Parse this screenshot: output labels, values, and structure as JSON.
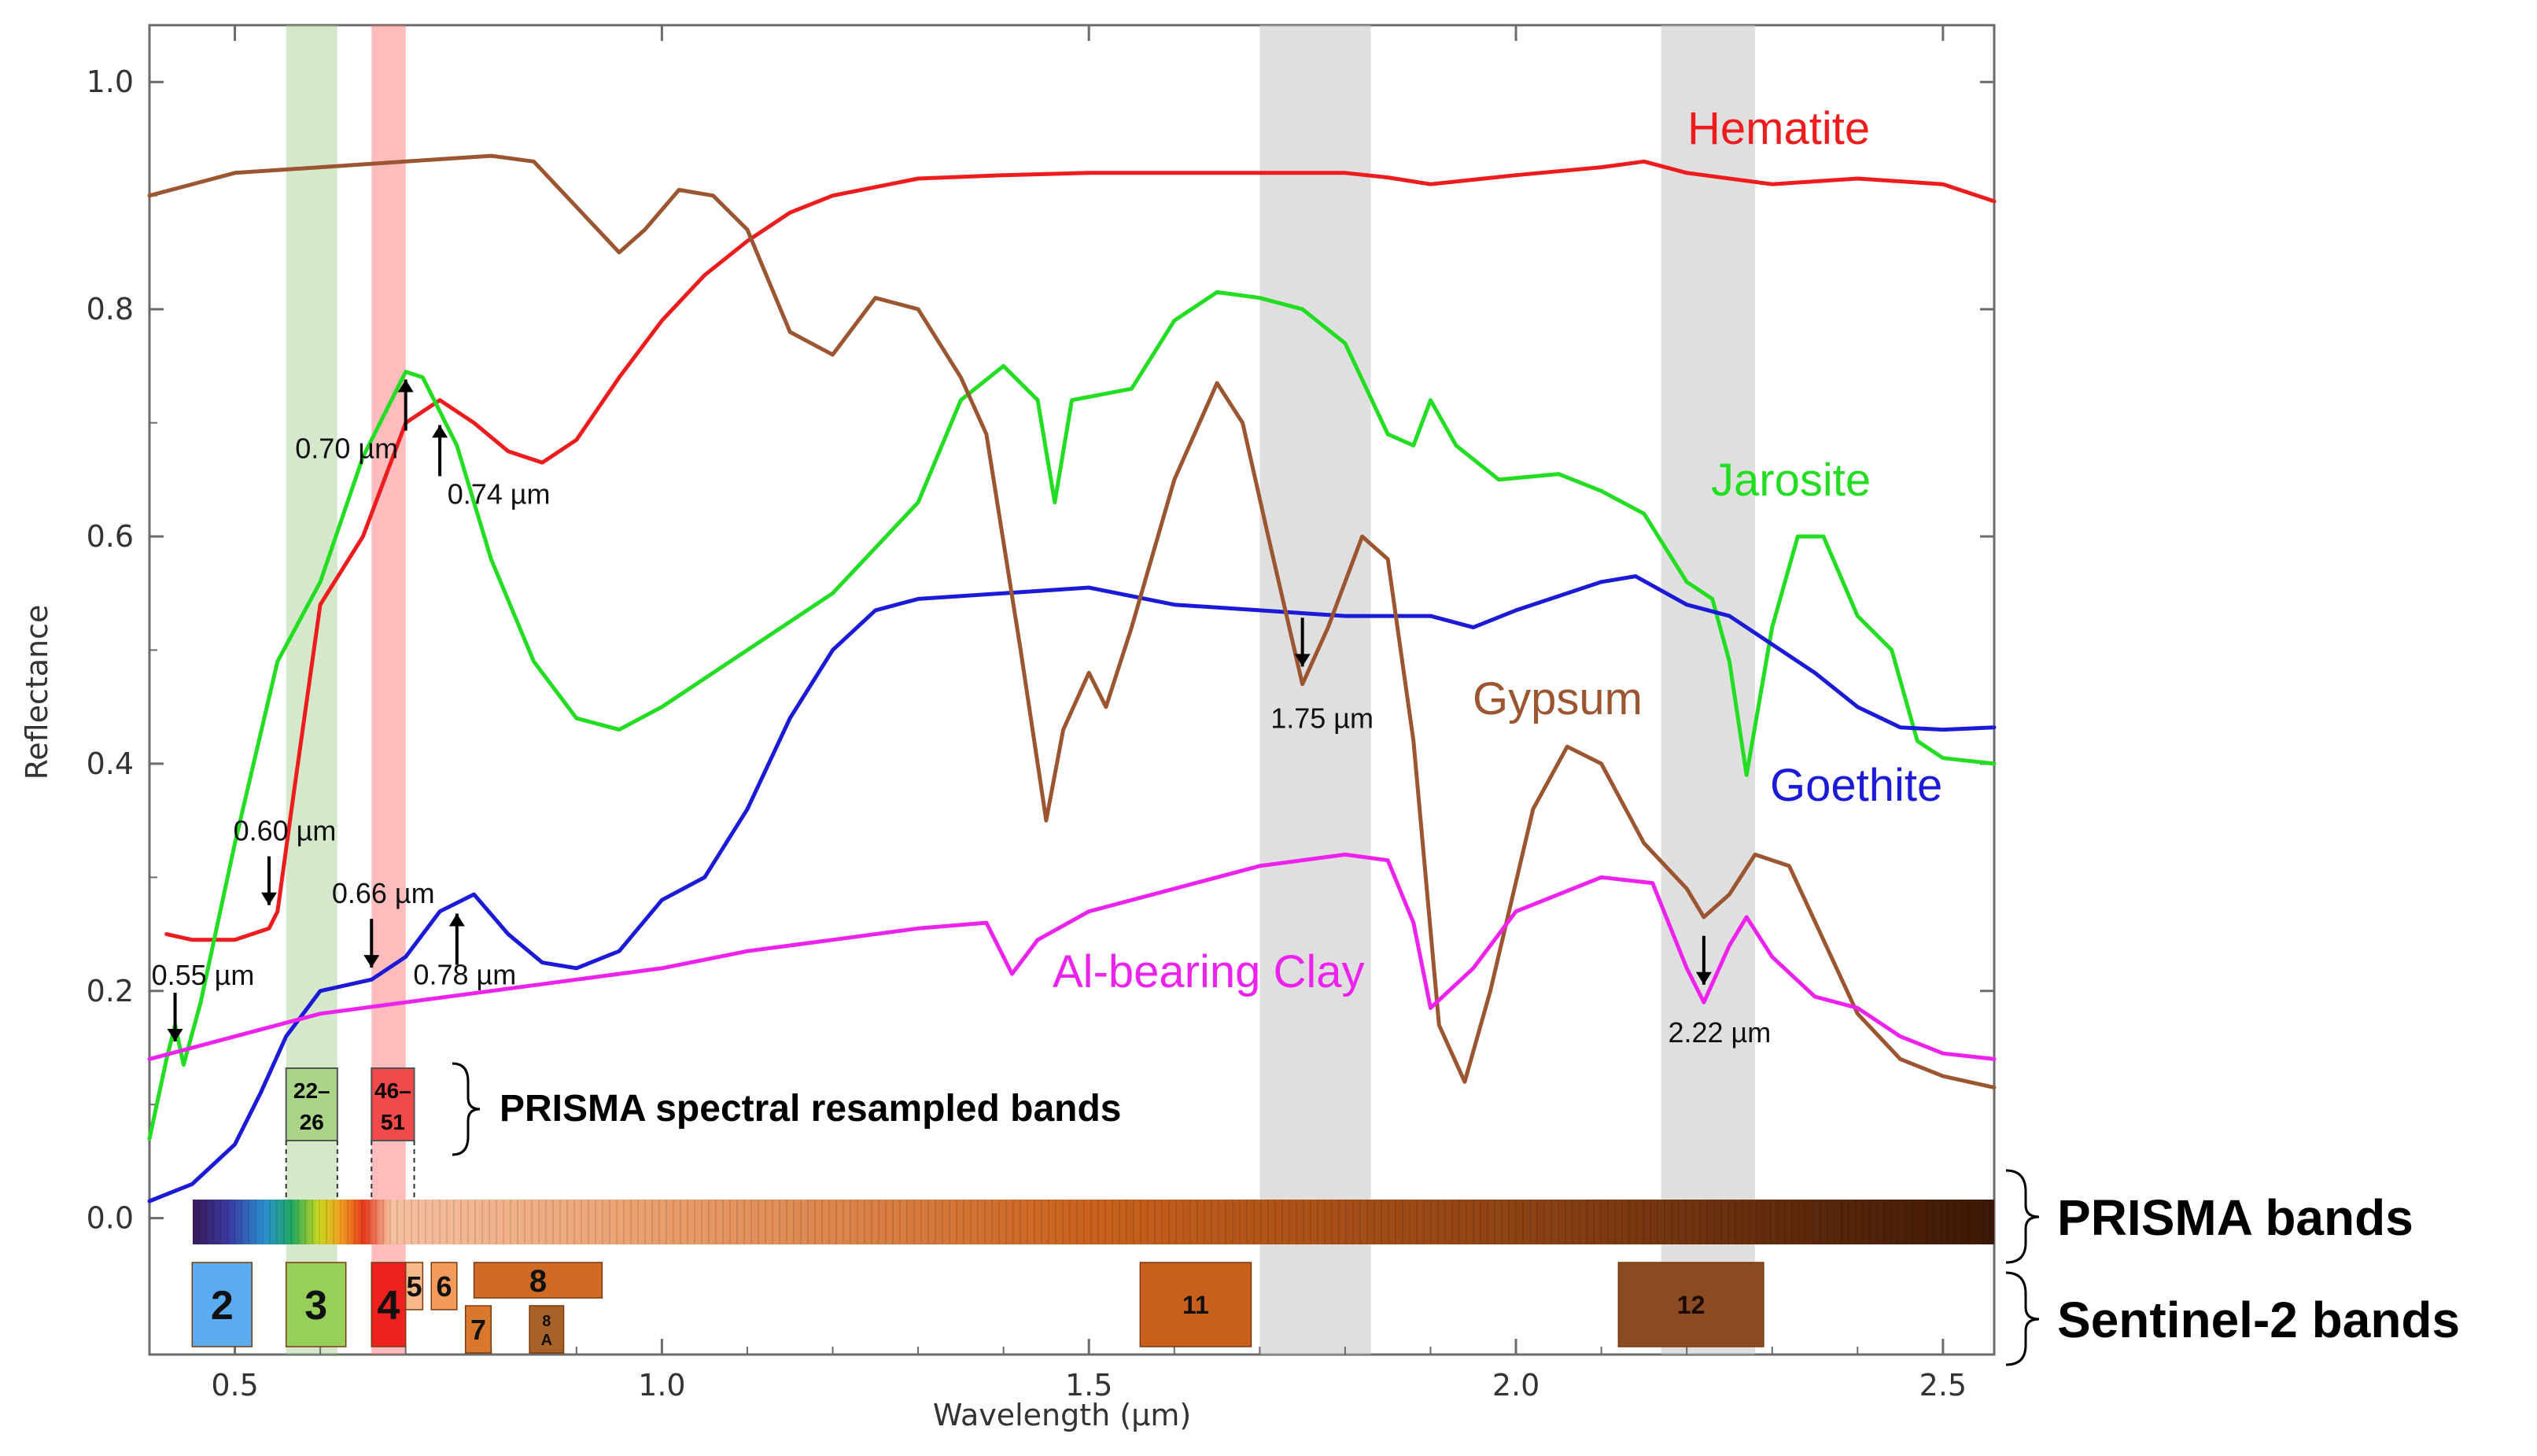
{
  "chart_data": {
    "type": "line",
    "title": "",
    "xlabel": "Wavelength (μm)",
    "ylabel": "Reflectance",
    "xlim": [
      0.4,
      2.56
    ],
    "ylim": [
      -0.12,
      1.05
    ],
    "x_ticks": [
      "0.5",
      "1.0",
      "1.5",
      "2.0",
      "2.5"
    ],
    "x_tick_values": [
      0.5,
      1.0,
      1.5,
      2.0,
      2.5
    ],
    "y_ticks": [
      "0.0",
      "0.2",
      "0.4",
      "0.6",
      "0.8",
      "1.0"
    ],
    "y_tick_values": [
      0.0,
      0.2,
      0.4,
      0.6,
      0.8,
      1.0
    ],
    "series": [
      {
        "name": "Hematite",
        "color": "#ee1c1c",
        "points": [
          [
            0.42,
            0.25
          ],
          [
            0.45,
            0.245
          ],
          [
            0.5,
            0.245
          ],
          [
            0.54,
            0.255
          ],
          [
            0.55,
            0.27
          ],
          [
            0.57,
            0.38
          ],
          [
            0.6,
            0.54
          ],
          [
            0.65,
            0.6
          ],
          [
            0.7,
            0.7
          ],
          [
            0.74,
            0.72
          ],
          [
            0.78,
            0.7
          ],
          [
            0.82,
            0.675
          ],
          [
            0.86,
            0.665
          ],
          [
            0.9,
            0.685
          ],
          [
            0.95,
            0.74
          ],
          [
            1.0,
            0.79
          ],
          [
            1.05,
            0.83
          ],
          [
            1.1,
            0.86
          ],
          [
            1.15,
            0.885
          ],
          [
            1.2,
            0.9
          ],
          [
            1.3,
            0.915
          ],
          [
            1.4,
            0.918
          ],
          [
            1.5,
            0.92
          ],
          [
            1.6,
            0.92
          ],
          [
            1.7,
            0.92
          ],
          [
            1.8,
            0.92
          ],
          [
            1.85,
            0.916
          ],
          [
            1.9,
            0.91
          ],
          [
            2.0,
            0.918
          ],
          [
            2.1,
            0.925
          ],
          [
            2.15,
            0.93
          ],
          [
            2.2,
            0.92
          ],
          [
            2.3,
            0.91
          ],
          [
            2.4,
            0.915
          ],
          [
            2.5,
            0.91
          ],
          [
            2.56,
            0.895
          ]
        ]
      },
      {
        "name": "Jarosite",
        "color": "#22dd22",
        "points": [
          [
            0.4,
            0.07
          ],
          [
            0.42,
            0.14
          ],
          [
            0.43,
            0.17
          ],
          [
            0.44,
            0.135
          ],
          [
            0.46,
            0.19
          ],
          [
            0.5,
            0.33
          ],
          [
            0.55,
            0.49
          ],
          [
            0.6,
            0.56
          ],
          [
            0.65,
            0.67
          ],
          [
            0.7,
            0.745
          ],
          [
            0.72,
            0.74
          ],
          [
            0.76,
            0.68
          ],
          [
            0.8,
            0.58
          ],
          [
            0.85,
            0.49
          ],
          [
            0.9,
            0.44
          ],
          [
            0.95,
            0.43
          ],
          [
            1.0,
            0.45
          ],
          [
            1.1,
            0.5
          ],
          [
            1.2,
            0.55
          ],
          [
            1.3,
            0.63
          ],
          [
            1.35,
            0.72
          ],
          [
            1.4,
            0.75
          ],
          [
            1.44,
            0.72
          ],
          [
            1.46,
            0.63
          ],
          [
            1.48,
            0.72
          ],
          [
            1.55,
            0.73
          ],
          [
            1.6,
            0.79
          ],
          [
            1.65,
            0.815
          ],
          [
            1.7,
            0.81
          ],
          [
            1.75,
            0.8
          ],
          [
            1.8,
            0.77
          ],
          [
            1.85,
            0.69
          ],
          [
            1.88,
            0.68
          ],
          [
            1.9,
            0.72
          ],
          [
            1.93,
            0.68
          ],
          [
            1.98,
            0.65
          ],
          [
            2.05,
            0.655
          ],
          [
            2.1,
            0.64
          ],
          [
            2.15,
            0.62
          ],
          [
            2.2,
            0.56
          ],
          [
            2.23,
            0.545
          ],
          [
            2.25,
            0.49
          ],
          [
            2.27,
            0.39
          ],
          [
            2.3,
            0.52
          ],
          [
            2.33,
            0.6
          ],
          [
            2.36,
            0.6
          ],
          [
            2.4,
            0.53
          ],
          [
            2.44,
            0.5
          ],
          [
            2.47,
            0.42
          ],
          [
            2.5,
            0.405
          ],
          [
            2.56,
            0.4
          ]
        ]
      },
      {
        "name": "Goethite",
        "color": "#1a1ad8",
        "points": [
          [
            0.4,
            0.015
          ],
          [
            0.45,
            0.03
          ],
          [
            0.5,
            0.065
          ],
          [
            0.53,
            0.11
          ],
          [
            0.56,
            0.16
          ],
          [
            0.6,
            0.2
          ],
          [
            0.66,
            0.21
          ],
          [
            0.7,
            0.23
          ],
          [
            0.74,
            0.27
          ],
          [
            0.78,
            0.285
          ],
          [
            0.82,
            0.25
          ],
          [
            0.86,
            0.225
          ],
          [
            0.9,
            0.22
          ],
          [
            0.95,
            0.235
          ],
          [
            1.0,
            0.28
          ],
          [
            1.05,
            0.3
          ],
          [
            1.1,
            0.36
          ],
          [
            1.15,
            0.44
          ],
          [
            1.2,
            0.5
          ],
          [
            1.25,
            0.535
          ],
          [
            1.3,
            0.545
          ],
          [
            1.4,
            0.55
          ],
          [
            1.5,
            0.555
          ],
          [
            1.6,
            0.54
          ],
          [
            1.7,
            0.535
          ],
          [
            1.8,
            0.53
          ],
          [
            1.9,
            0.53
          ],
          [
            1.95,
            0.52
          ],
          [
            2.0,
            0.535
          ],
          [
            2.1,
            0.56
          ],
          [
            2.14,
            0.565
          ],
          [
            2.2,
            0.54
          ],
          [
            2.25,
            0.53
          ],
          [
            2.3,
            0.505
          ],
          [
            2.35,
            0.48
          ],
          [
            2.4,
            0.45
          ],
          [
            2.45,
            0.432
          ],
          [
            2.5,
            0.43
          ],
          [
            2.56,
            0.432
          ]
        ]
      },
      {
        "name": "Gypsum",
        "color": "#9b5530",
        "points": [
          [
            0.4,
            0.9
          ],
          [
            0.5,
            0.92
          ],
          [
            0.6,
            0.925
          ],
          [
            0.7,
            0.93
          ],
          [
            0.8,
            0.935
          ],
          [
            0.85,
            0.93
          ],
          [
            0.9,
            0.89
          ],
          [
            0.95,
            0.85
          ],
          [
            0.98,
            0.87
          ],
          [
            1.02,
            0.905
          ],
          [
            1.06,
            0.9
          ],
          [
            1.1,
            0.87
          ],
          [
            1.15,
            0.78
          ],
          [
            1.2,
            0.76
          ],
          [
            1.25,
            0.81
          ],
          [
            1.3,
            0.8
          ],
          [
            1.35,
            0.74
          ],
          [
            1.38,
            0.69
          ],
          [
            1.42,
            0.5
          ],
          [
            1.45,
            0.35
          ],
          [
            1.47,
            0.43
          ],
          [
            1.5,
            0.48
          ],
          [
            1.52,
            0.45
          ],
          [
            1.55,
            0.52
          ],
          [
            1.6,
            0.65
          ],
          [
            1.65,
            0.735
          ],
          [
            1.68,
            0.7
          ],
          [
            1.71,
            0.6
          ],
          [
            1.75,
            0.47
          ],
          [
            1.78,
            0.52
          ],
          [
            1.82,
            0.6
          ],
          [
            1.85,
            0.58
          ],
          [
            1.88,
            0.42
          ],
          [
            1.91,
            0.17
          ],
          [
            1.94,
            0.12
          ],
          [
            1.97,
            0.2
          ],
          [
            2.02,
            0.36
          ],
          [
            2.06,
            0.415
          ],
          [
            2.1,
            0.4
          ],
          [
            2.15,
            0.33
          ],
          [
            2.2,
            0.29
          ],
          [
            2.22,
            0.265
          ],
          [
            2.25,
            0.285
          ],
          [
            2.28,
            0.32
          ],
          [
            2.32,
            0.31
          ],
          [
            2.36,
            0.245
          ],
          [
            2.4,
            0.18
          ],
          [
            2.45,
            0.14
          ],
          [
            2.5,
            0.125
          ],
          [
            2.56,
            0.115
          ]
        ]
      },
      {
        "name": "Al-bearing Clay",
        "color": "#ee22ee",
        "points": [
          [
            0.4,
            0.14
          ],
          [
            0.5,
            0.16
          ],
          [
            0.6,
            0.18
          ],
          [
            0.7,
            0.19
          ],
          [
            0.8,
            0.2
          ],
          [
            0.9,
            0.21
          ],
          [
            1.0,
            0.22
          ],
          [
            1.1,
            0.235
          ],
          [
            1.2,
            0.245
          ],
          [
            1.3,
            0.255
          ],
          [
            1.38,
            0.26
          ],
          [
            1.4,
            0.23
          ],
          [
            1.41,
            0.215
          ],
          [
            1.44,
            0.245
          ],
          [
            1.5,
            0.27
          ],
          [
            1.6,
            0.29
          ],
          [
            1.7,
            0.31
          ],
          [
            1.8,
            0.32
          ],
          [
            1.85,
            0.315
          ],
          [
            1.88,
            0.26
          ],
          [
            1.9,
            0.185
          ],
          [
            1.95,
            0.22
          ],
          [
            2.0,
            0.27
          ],
          [
            2.1,
            0.3
          ],
          [
            2.16,
            0.295
          ],
          [
            2.2,
            0.22
          ],
          [
            2.22,
            0.19
          ],
          [
            2.25,
            0.24
          ],
          [
            2.27,
            0.265
          ],
          [
            2.3,
            0.23
          ],
          [
            2.35,
            0.195
          ],
          [
            2.4,
            0.185
          ],
          [
            2.45,
            0.16
          ],
          [
            2.5,
            0.145
          ],
          [
            2.56,
            0.14
          ]
        ]
      }
    ],
    "series_labels": [
      "Hematite",
      "Jarosite",
      "Gypsum",
      "Goethite",
      "Al-bearing Clay"
    ],
    "highlight_bands": [
      {
        "name": "green-band",
        "range": [
          0.56,
          0.62
        ],
        "color": "#a3cc8c"
      },
      {
        "name": "red-band",
        "range": [
          0.66,
          0.7
        ],
        "color": "#ff6a6a"
      },
      {
        "name": "swir1-band",
        "range": [
          1.7,
          1.83
        ],
        "color": "#c4c4c4"
      },
      {
        "name": "swir2-band",
        "range": [
          2.17,
          2.28
        ],
        "color": "#c4c4c4"
      }
    ],
    "annotations": [
      {
        "text": "0.55 µm",
        "x": 0.43,
        "y": 0.15,
        "direction": "down"
      },
      {
        "text": "0.60 µm",
        "x": 0.54,
        "y": 0.27,
        "direction": "down"
      },
      {
        "text": "0.66 µm",
        "x": 0.66,
        "y": 0.215,
        "direction": "down"
      },
      {
        "text": "0.70 µm",
        "x": 0.7,
        "y": 0.745,
        "direction": "up"
      },
      {
        "text": "0.74 µm",
        "x": 0.74,
        "y": 0.705,
        "direction": "up"
      },
      {
        "text": "0.78 µm",
        "x": 0.76,
        "y": 0.275,
        "direction": "up"
      },
      {
        "text": "1.75 µm",
        "x": 1.75,
        "y": 0.48,
        "direction": "down"
      },
      {
        "text": "2.22 µm",
        "x": 2.22,
        "y": 0.2,
        "direction": "down"
      }
    ],
    "prisma_resampled_bands": [
      {
        "label1": "22–",
        "label2": "26",
        "range": [
          0.56,
          0.62
        ],
        "color": "#aad487"
      },
      {
        "label1": "46–",
        "label2": "51",
        "range": [
          0.66,
          0.71
        ],
        "color": "#f24a4a"
      }
    ],
    "prisma_resampled_label": "PRISMA spectral resampled bands",
    "prisma_bands_label": "PRISMA bands",
    "sentinel_bands_label": "Sentinel-2 bands",
    "sentinel_bands": [
      {
        "label": "2",
        "range": [
          0.45,
          0.52
        ],
        "level": "full",
        "color": "#5aabf0"
      },
      {
        "label": "3",
        "range": [
          0.56,
          0.63
        ],
        "level": "full",
        "color": "#96d05a"
      },
      {
        "label": "4",
        "range": [
          0.66,
          0.7
        ],
        "level": "full",
        "color": "#ee2020"
      },
      {
        "label": "5",
        "range": [
          0.7,
          0.72
        ],
        "level": "short",
        "color": "#f7b88a"
      },
      {
        "label": "6",
        "range": [
          0.73,
          0.76
        ],
        "level": "short",
        "color": "#f39b5a"
      },
      {
        "label": "7",
        "range": [
          0.77,
          0.8
        ],
        "level": "low",
        "color": "#d9782d"
      },
      {
        "label": "8",
        "range": [
          0.78,
          0.93
        ],
        "level": "top",
        "color": "#d06a24"
      },
      {
        "label": "8",
        "label2": "A",
        "range": [
          0.845,
          0.885
        ],
        "level": "low",
        "color": "#a86228"
      },
      {
        "label": "11",
        "range": [
          1.56,
          1.69
        ],
        "level": "full",
        "color": "#c95f1c"
      },
      {
        "label": "12",
        "range": [
          2.12,
          2.29
        ],
        "level": "full",
        "color": "#8a4a22"
      }
    ]
  }
}
